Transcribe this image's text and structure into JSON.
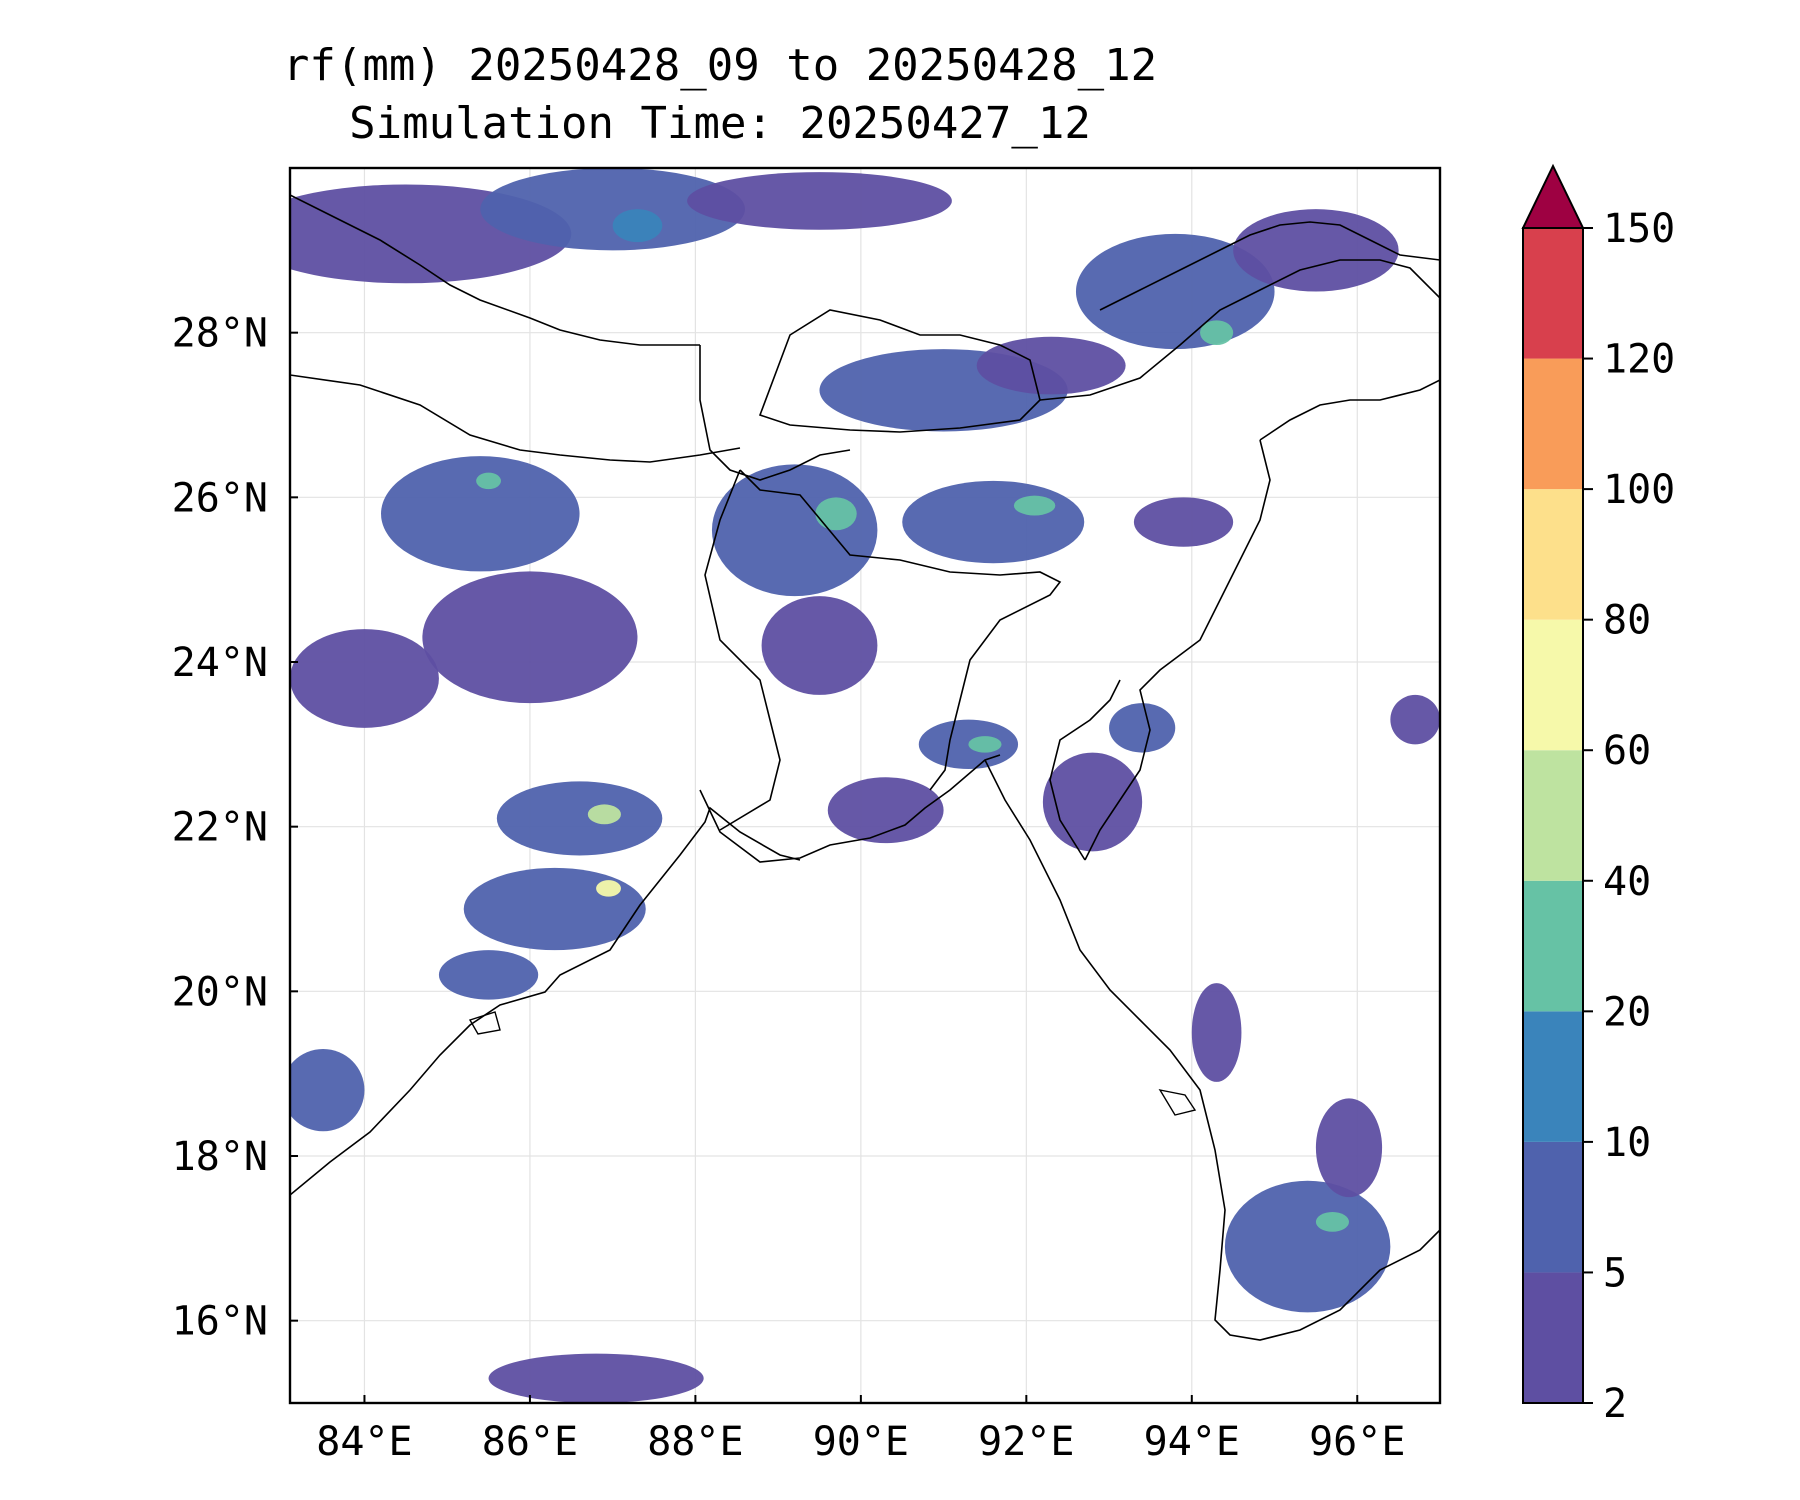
{
  "title": {
    "line1": "rf(mm) 20250428_09 to 20250428_12",
    "line2": "Simulation Time: 20250427_12"
  },
  "map": {
    "lon_range": [
      83.1,
      97.0
    ],
    "lat_range": [
      15.0,
      30.0
    ],
    "lon_ticks": [
      84,
      86,
      88,
      90,
      92,
      94,
      96
    ],
    "lon_tick_labels": [
      "84°E",
      "86°E",
      "88°E",
      "90°E",
      "92°E",
      "94°E",
      "96°E"
    ],
    "lat_ticks": [
      16,
      18,
      20,
      22,
      24,
      26,
      28
    ],
    "lat_tick_labels": [
      "16°N",
      "18°N",
      "20°N",
      "22°N",
      "24°N",
      "26°N",
      "28°N"
    ],
    "gridlines": true
  },
  "colorbar": {
    "levels": [
      2,
      5,
      10,
      20,
      40,
      60,
      80,
      100,
      120,
      150
    ],
    "labels": [
      "2",
      "5",
      "10",
      "20",
      "40",
      "60",
      "80",
      "100",
      "120",
      "150"
    ],
    "colors": [
      "#5e4fa2",
      "#4f62ad",
      "#3a84bb",
      "#66c2a5",
      "#bee3a0",
      "#f6f9aa",
      "#fde08b",
      "#f99c59",
      "#d8404d",
      "#9e0142"
    ],
    "extend": "max"
  },
  "chart_data": {
    "type": "heatmap",
    "title": "rf(mm) 20250428_09 to 20250428_12",
    "subtitle": "Simulation Time: 20250427_12",
    "xlabel": "",
    "ylabel": "",
    "xlim": [
      83.1,
      97.0
    ],
    "ylim": [
      15.0,
      30.0
    ],
    "rain_cells": [
      {
        "lon": 84.5,
        "lat": 29.2,
        "rlon": 2.0,
        "rlat": 0.6,
        "level": 0
      },
      {
        "lon": 87.0,
        "lat": 29.5,
        "rlon": 1.6,
        "rlat": 0.5,
        "level": 1
      },
      {
        "lon": 87.3,
        "lat": 29.3,
        "rlon": 0.3,
        "rlat": 0.2,
        "level": 2
      },
      {
        "lon": 89.5,
        "lat": 29.6,
        "rlon": 1.6,
        "rlat": 0.35,
        "level": 0
      },
      {
        "lon": 93.8,
        "lat": 28.5,
        "rlon": 1.2,
        "rlat": 0.7,
        "level": 1
      },
      {
        "lon": 94.3,
        "lat": 28.0,
        "rlon": 0.2,
        "rlat": 0.15,
        "level": 3
      },
      {
        "lon": 95.5,
        "lat": 29.0,
        "rlon": 1.0,
        "rlat": 0.5,
        "level": 0
      },
      {
        "lon": 91.0,
        "lat": 27.3,
        "rlon": 1.5,
        "rlat": 0.5,
        "level": 1
      },
      {
        "lon": 92.3,
        "lat": 27.6,
        "rlon": 0.9,
        "rlat": 0.35,
        "level": 0
      },
      {
        "lon": 85.4,
        "lat": 25.8,
        "rlon": 1.2,
        "rlat": 0.7,
        "level": 1
      },
      {
        "lon": 85.5,
        "lat": 26.2,
        "rlon": 0.15,
        "rlat": 0.1,
        "level": 3
      },
      {
        "lon": 86.0,
        "lat": 24.3,
        "rlon": 1.3,
        "rlat": 0.8,
        "level": 0
      },
      {
        "lon": 84.0,
        "lat": 23.8,
        "rlon": 0.9,
        "rlat": 0.6,
        "level": 0
      },
      {
        "lon": 89.2,
        "lat": 25.6,
        "rlon": 1.0,
        "rlat": 0.8,
        "level": 1
      },
      {
        "lon": 89.7,
        "lat": 25.8,
        "rlon": 0.25,
        "rlat": 0.2,
        "level": 3
      },
      {
        "lon": 89.5,
        "lat": 24.2,
        "rlon": 0.7,
        "rlat": 0.6,
        "level": 0
      },
      {
        "lon": 91.6,
        "lat": 25.7,
        "rlon": 1.1,
        "rlat": 0.5,
        "level": 1
      },
      {
        "lon": 92.1,
        "lat": 25.9,
        "rlon": 0.25,
        "rlat": 0.12,
        "level": 3
      },
      {
        "lon": 91.3,
        "lat": 23.0,
        "rlon": 0.6,
        "rlat": 0.3,
        "level": 1
      },
      {
        "lon": 91.5,
        "lat": 23.0,
        "rlon": 0.2,
        "rlat": 0.1,
        "level": 3
      },
      {
        "lon": 92.8,
        "lat": 22.3,
        "rlon": 0.6,
        "rlat": 0.6,
        "level": 0
      },
      {
        "lon": 93.4,
        "lat": 23.2,
        "rlon": 0.4,
        "rlat": 0.3,
        "level": 1
      },
      {
        "lon": 90.3,
        "lat": 22.2,
        "rlon": 0.7,
        "rlat": 0.4,
        "level": 0
      },
      {
        "lon": 86.6,
        "lat": 22.1,
        "rlon": 1.0,
        "rlat": 0.45,
        "level": 1
      },
      {
        "lon": 86.9,
        "lat": 22.15,
        "rlon": 0.2,
        "rlat": 0.12,
        "level": 4
      },
      {
        "lon": 86.3,
        "lat": 21.0,
        "rlon": 1.1,
        "rlat": 0.5,
        "level": 1
      },
      {
        "lon": 86.95,
        "lat": 21.25,
        "rlon": 0.15,
        "rlat": 0.1,
        "level": 5
      },
      {
        "lon": 85.5,
        "lat": 20.2,
        "rlon": 0.6,
        "rlat": 0.3,
        "level": 1
      },
      {
        "lon": 83.5,
        "lat": 18.8,
        "rlon": 0.5,
        "rlat": 0.5,
        "level": 1
      },
      {
        "lon": 95.4,
        "lat": 16.9,
        "rlon": 1.0,
        "rlat": 0.8,
        "level": 1
      },
      {
        "lon": 95.7,
        "lat": 17.2,
        "rlon": 0.2,
        "rlat": 0.12,
        "level": 3
      },
      {
        "lon": 95.9,
        "lat": 18.1,
        "rlon": 0.4,
        "rlat": 0.6,
        "level": 0
      },
      {
        "lon": 94.3,
        "lat": 19.5,
        "rlon": 0.3,
        "rlat": 0.6,
        "level": 0
      },
      {
        "lon": 86.8,
        "lat": 15.3,
        "rlon": 1.3,
        "rlat": 0.3,
        "level": 0
      },
      {
        "lon": 96.7,
        "lat": 23.3,
        "rlon": 0.3,
        "rlat": 0.3,
        "level": 0
      },
      {
        "lon": 93.9,
        "lat": 25.7,
        "rlon": 0.6,
        "rlat": 0.3,
        "level": 0
      }
    ]
  }
}
